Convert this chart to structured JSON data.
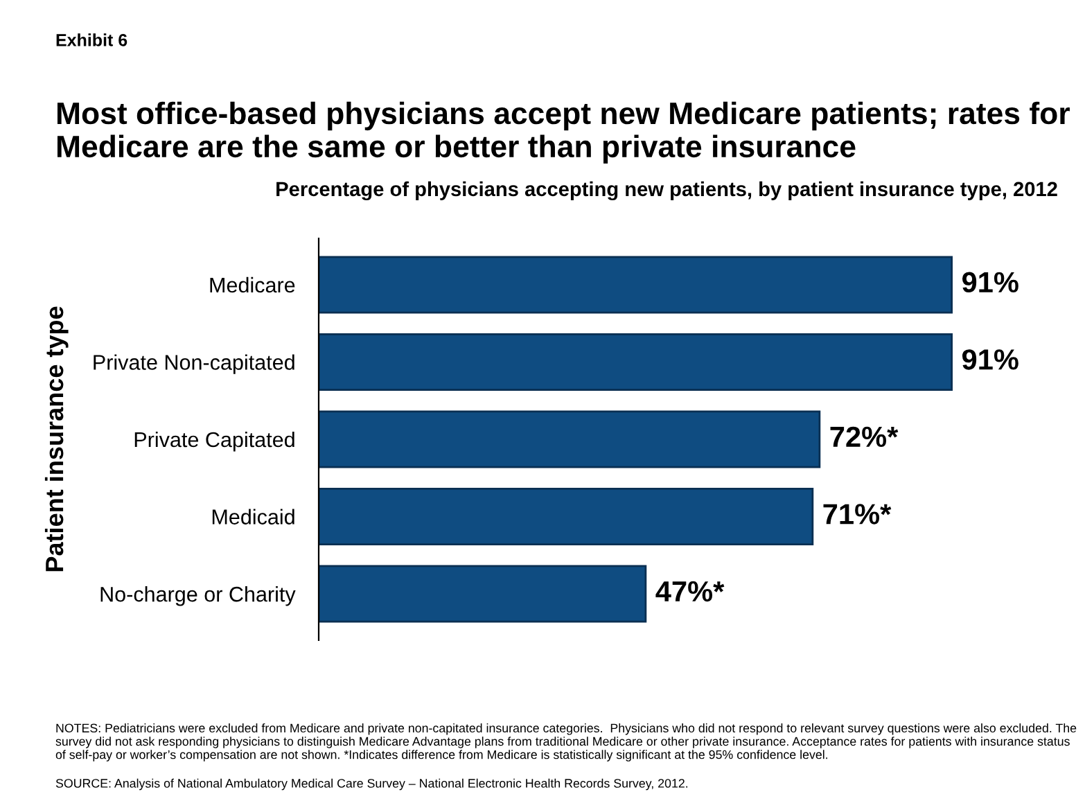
{
  "chart_data": {
    "type": "bar",
    "orientation": "horizontal",
    "title": "Most office-based physicians accept new Medicare patients; rates for Medicare are the same or better than private insurance",
    "subtitle": "Percentage of physicians accepting new patients, by patient insurance type, 2012",
    "ylabel": "Patient insurance type",
    "categories": [
      "Medicare",
      "Private Non-capitated",
      "Private Capitated",
      "Medicaid",
      "No-charge or Charity"
    ],
    "values": [
      91,
      91,
      72,
      71,
      47
    ],
    "value_labels": [
      "91%",
      "91%",
      "72%*",
      "71%*",
      "47%*"
    ],
    "color": "#0f4c81",
    "tick_labels": "y",
    "grid": false,
    "legend": false,
    "annotations": [
      "Exhibit 6",
      "NOTES: Pediatricians were excluded from Medicare and private non-capitated insurance categories.  Physicians who did not respond to relevant survey questions were also excluded. The survey did not ask responding physicians to distinguish Medicare Advantage plans from traditional Medicare or other private insurance. Acceptance rates for patients with insurance status of self-pay or worker’s compensation are not shown. *Indicates difference from Medicare is statistically significant at the 95% confidence level.",
      "SOURCE: Analysis of National Ambulatory Medical Care Survey – National Electronic Health Records Survey, 2012."
    ]
  }
}
